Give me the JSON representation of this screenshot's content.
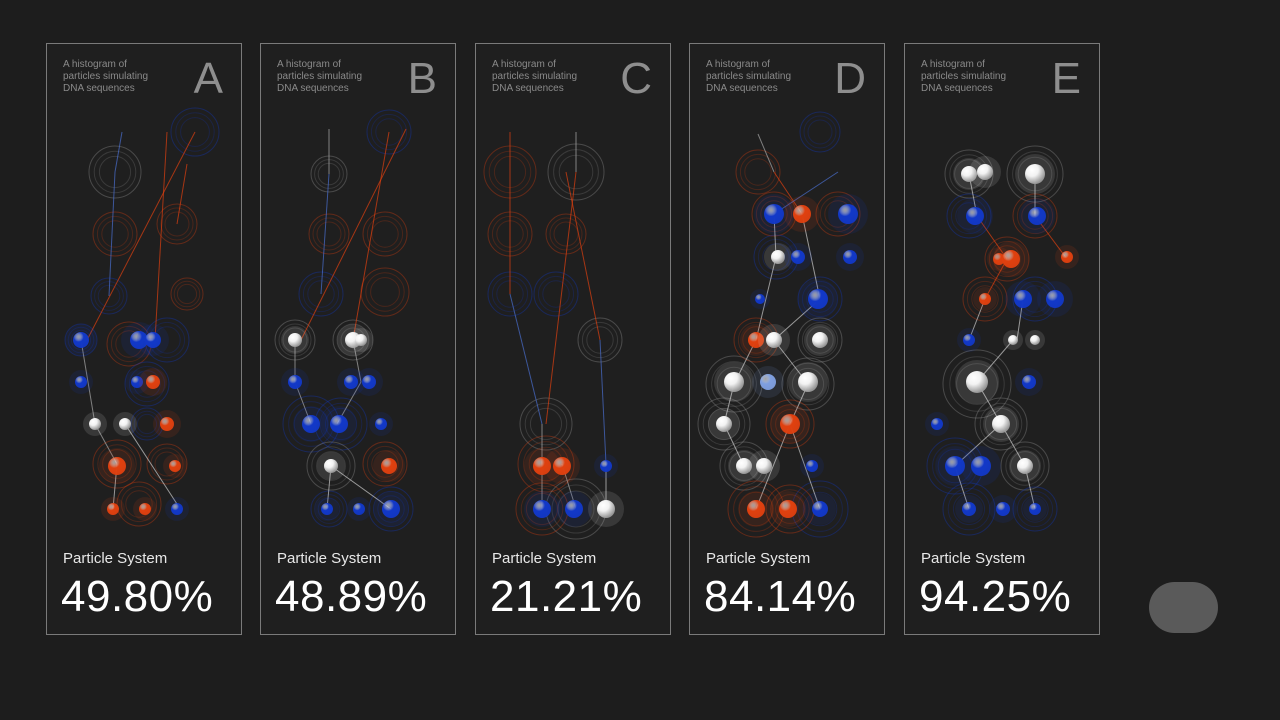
{
  "panels": [
    {
      "letter": "A",
      "caption": "A histogram of\nparticles simulating\nDNA sequences",
      "label": "Particle System",
      "value": "49.80%"
    },
    {
      "letter": "B",
      "caption": "A histogram of\nparticles simulating\nDNA sequences",
      "label": "Particle System",
      "value": "48.89%"
    },
    {
      "letter": "C",
      "caption": "A histogram of\nparticles simulating\nDNA sequences",
      "label": "Particle System",
      "value": "21.21%"
    },
    {
      "letter": "D",
      "caption": "A histogram of\nparticles simulating\nDNA sequences",
      "label": "Particle System",
      "value": "84.14%"
    },
    {
      "letter": "E",
      "caption": "A histogram of\nparticles simulating\nDNA sequences",
      "label": "Particle System",
      "value": "94.25%"
    }
  ],
  "colors": {
    "blue": "#1238c8",
    "orange": "#e0400f",
    "white": "#f2f2f2",
    "ring": "#9a9a9a"
  },
  "toggle": {
    "icon": "toggle-button"
  }
}
